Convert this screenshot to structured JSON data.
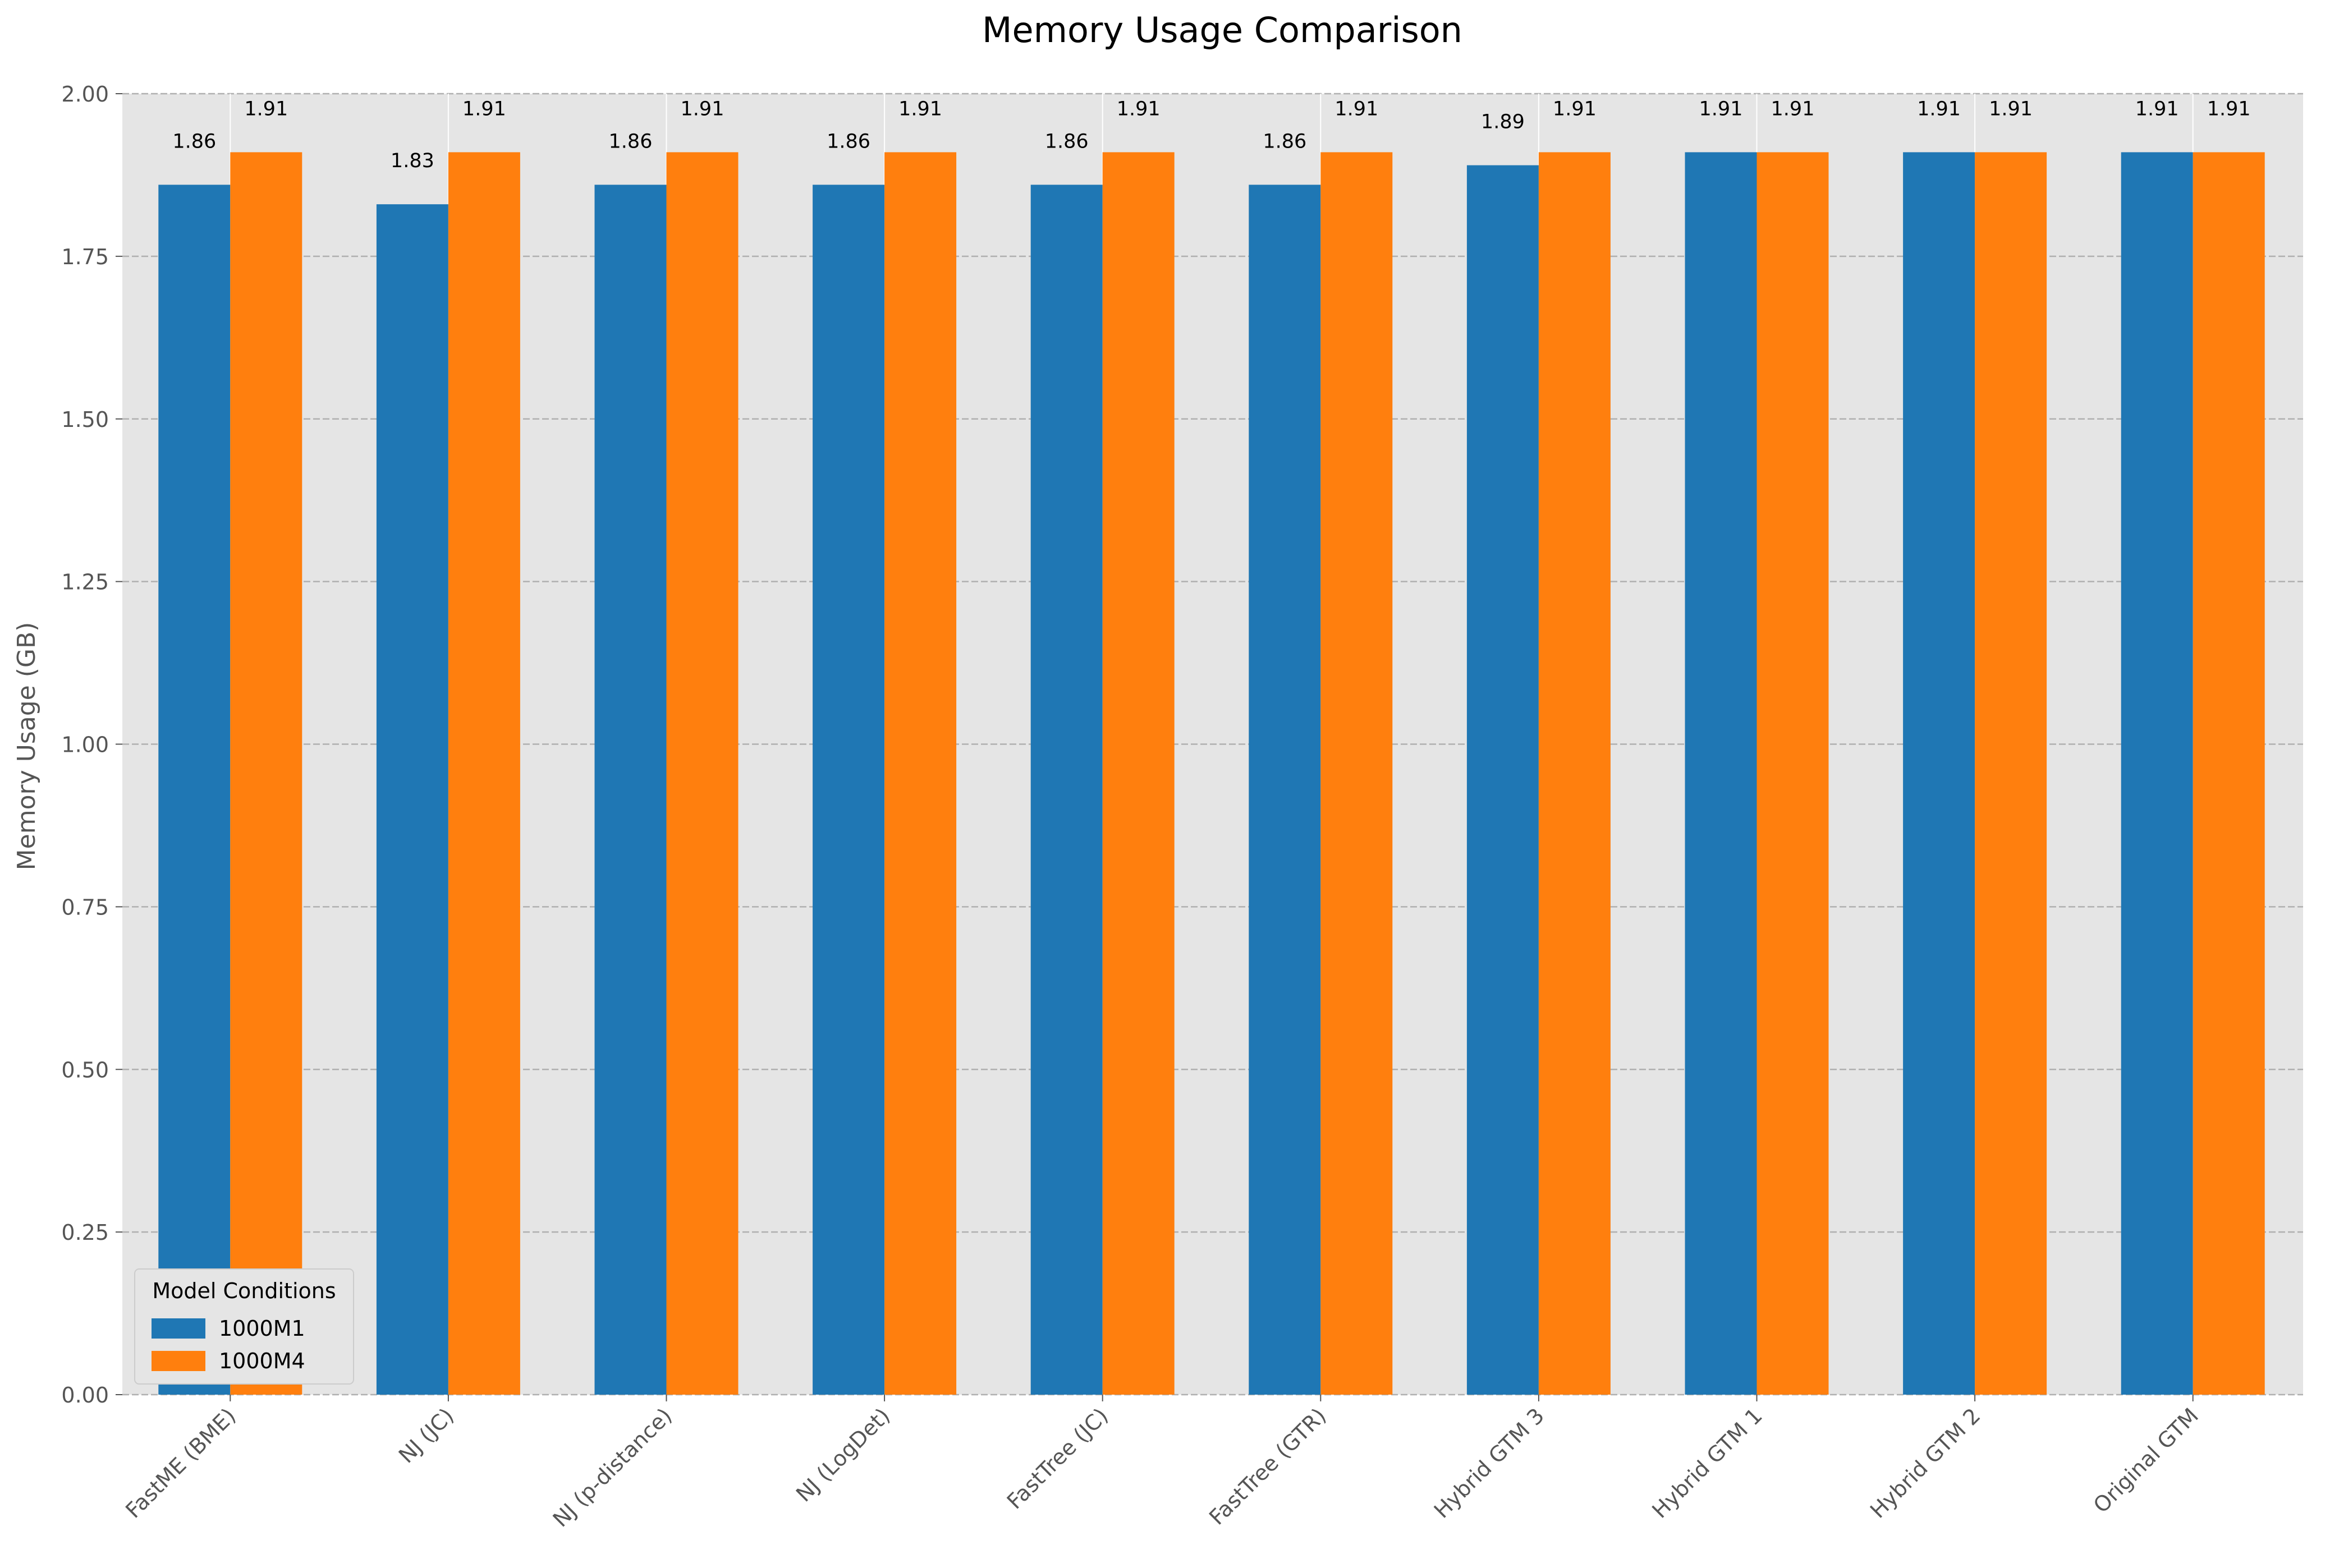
{
  "chart_data": {
    "type": "bar",
    "title": "Memory Usage Comparison",
    "xlabel": "",
    "ylabel": "Memory Usage (GB)",
    "ylim": [
      0,
      2.0
    ],
    "yticks": [
      "0.00",
      "0.25",
      "0.50",
      "0.75",
      "1.00",
      "1.25",
      "1.50",
      "1.75",
      "2.00"
    ],
    "categories": [
      "FastME (BME)",
      "NJ (JC)",
      "NJ (p-distance)",
      "NJ (LogDet)",
      "FastTree (JC)",
      "FastTree (GTR)",
      "Hybrid GTM 3",
      "Hybrid GTM 1",
      "Hybrid GTM 2",
      "Original GTM"
    ],
    "series": [
      {
        "name": "1000M1",
        "color": "#1f77b4",
        "values": [
          1.86,
          1.83,
          1.86,
          1.86,
          1.86,
          1.86,
          1.89,
          1.91,
          1.91,
          1.91
        ],
        "labels": [
          "1.86",
          "1.83",
          "1.86",
          "1.86",
          "1.86",
          "1.86",
          "1.89",
          "1.91",
          "1.91",
          "1.91"
        ]
      },
      {
        "name": "1000M4",
        "color": "#ff7f0e",
        "values": [
          1.91,
          1.91,
          1.91,
          1.91,
          1.91,
          1.91,
          1.91,
          1.91,
          1.91,
          1.91
        ],
        "labels": [
          "1.91",
          "1.91",
          "1.91",
          "1.91",
          "1.91",
          "1.91",
          "1.91",
          "1.91",
          "1.91",
          "1.91"
        ]
      }
    ],
    "legend": {
      "title": "Model Conditions",
      "placement": "lower-left"
    },
    "grid": true,
    "background_color": "#e5e5e5",
    "grid_color": "#b0b0b0"
  }
}
